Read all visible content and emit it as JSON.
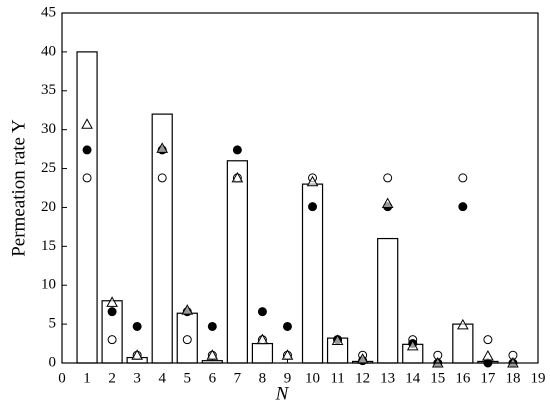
{
  "chart_data": {
    "type": "bar",
    "ylabel": "Permeation rate Y",
    "xlabel": "N",
    "x": [
      1,
      2,
      3,
      4,
      5,
      6,
      7,
      8,
      9,
      10,
      11,
      12,
      13,
      14,
      15,
      16,
      17,
      18
    ],
    "values": [
      40,
      8,
      0.7,
      32,
      6.4,
      0.3,
      26,
      2.5,
      0,
      23,
      3.2,
      0.2,
      16,
      2.4,
      0,
      5,
      0.2,
      0
    ],
    "color": "#ffffff",
    "edgecolor": "#000000",
    "series": [
      {
        "type": "scatter",
        "marker": "circle-open",
        "color": "#000000",
        "values": [
          23.8,
          3,
          1,
          23.8,
          3,
          1,
          23.8,
          3,
          1,
          23.8,
          3,
          1,
          23.8,
          3,
          1,
          23.8,
          3,
          1
        ]
      },
      {
        "type": "scatter",
        "marker": "circle-filled",
        "color": "#000000",
        "values": [
          27.4,
          6.6,
          4.7,
          27.4,
          6.6,
          4.7,
          27.4,
          6.6,
          4.7,
          20.1,
          3,
          0.3,
          20.1,
          2.5,
          0,
          20.1,
          0,
          0
        ]
      },
      {
        "type": "scatter",
        "marker": "triangle-open",
        "color": "#000000",
        "values": [
          30.7,
          7.8,
          1,
          27.6,
          6.8,
          1,
          23.8,
          3,
          1,
          23.3,
          2.9,
          0.5,
          20.5,
          2.2,
          0,
          4.9,
          0.9,
          0
        ]
      }
    ],
    "xlim": [
      0,
      19
    ],
    "xticks": [
      0,
      1,
      2,
      3,
      4,
      5,
      6,
      7,
      8,
      9,
      10,
      11,
      12,
      13,
      14,
      15,
      16,
      17,
      18,
      19
    ],
    "ylim": [
      0,
      45
    ],
    "yticks": [
      0,
      5,
      10,
      15,
      20,
      25,
      30,
      35,
      40,
      45
    ],
    "grid": false
  }
}
